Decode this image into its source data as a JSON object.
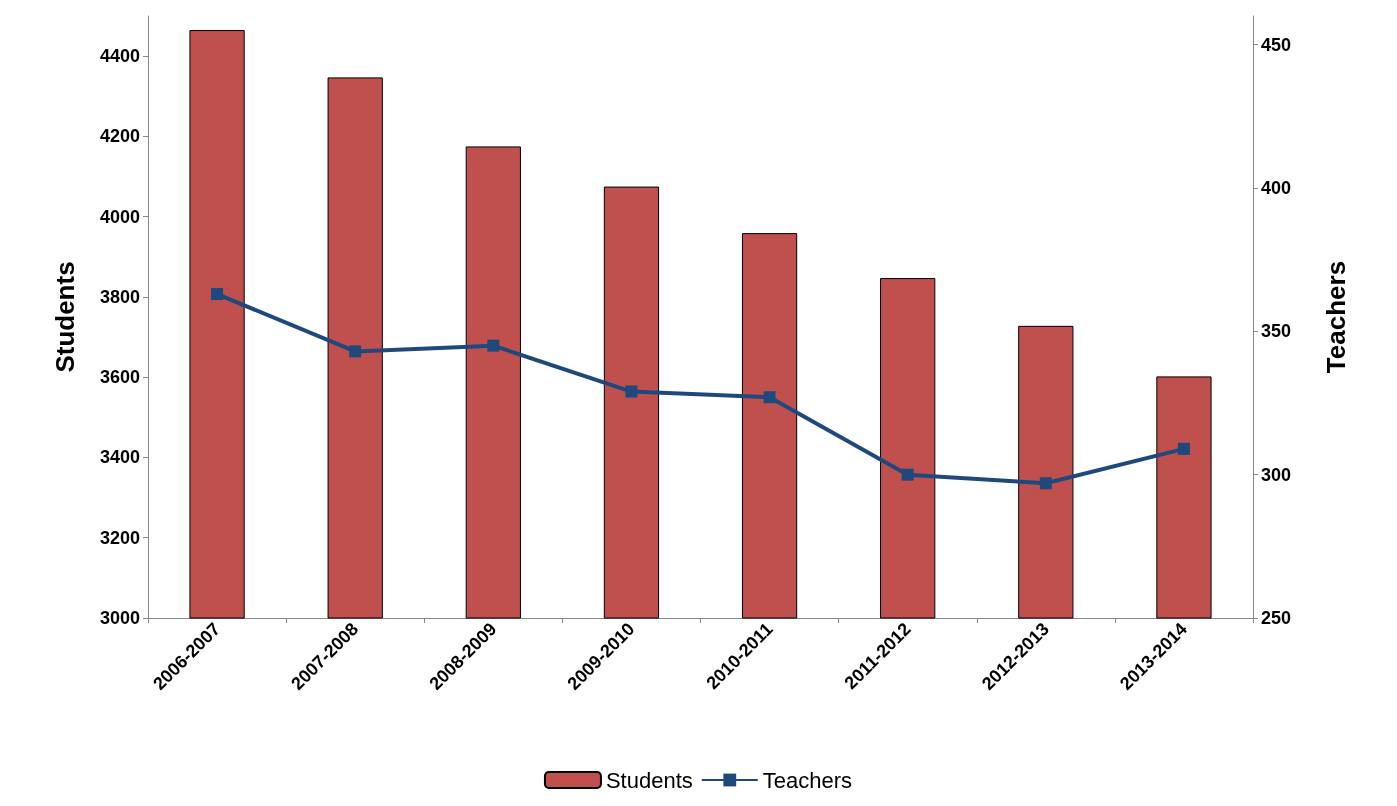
{
  "chart_data": {
    "type": "bar",
    "ylabel": "Students",
    "y2label": "Teachers",
    "categories": [
      "2006-2007",
      "2007-2008",
      "2008-2009",
      "2009-2010",
      "2010-2011",
      "2011-2012",
      "2012-2013",
      "2013-2014"
    ],
    "series": [
      {
        "name": "Students",
        "color": "#c0504d",
        "values": [
          4465,
          4347,
          4175,
          4075,
          3959,
          3847,
          3728,
          3602
        ]
      },
      {
        "name": "Teachers",
        "type": "line",
        "axis": "y2",
        "color": "#1f497d",
        "marker": "square",
        "values": [
          363,
          343,
          345,
          329,
          327,
          300,
          297,
          309
        ]
      }
    ],
    "ylim": [
      3000,
      4500
    ],
    "yticks": [
      3000,
      3200,
      3400,
      3600,
      3800,
      4000,
      4200,
      4400
    ],
    "y2lim": [
      250,
      460
    ],
    "y2ticks": [
      250,
      300,
      350,
      400,
      450
    ],
    "grid": false,
    "legend": "bottom"
  }
}
